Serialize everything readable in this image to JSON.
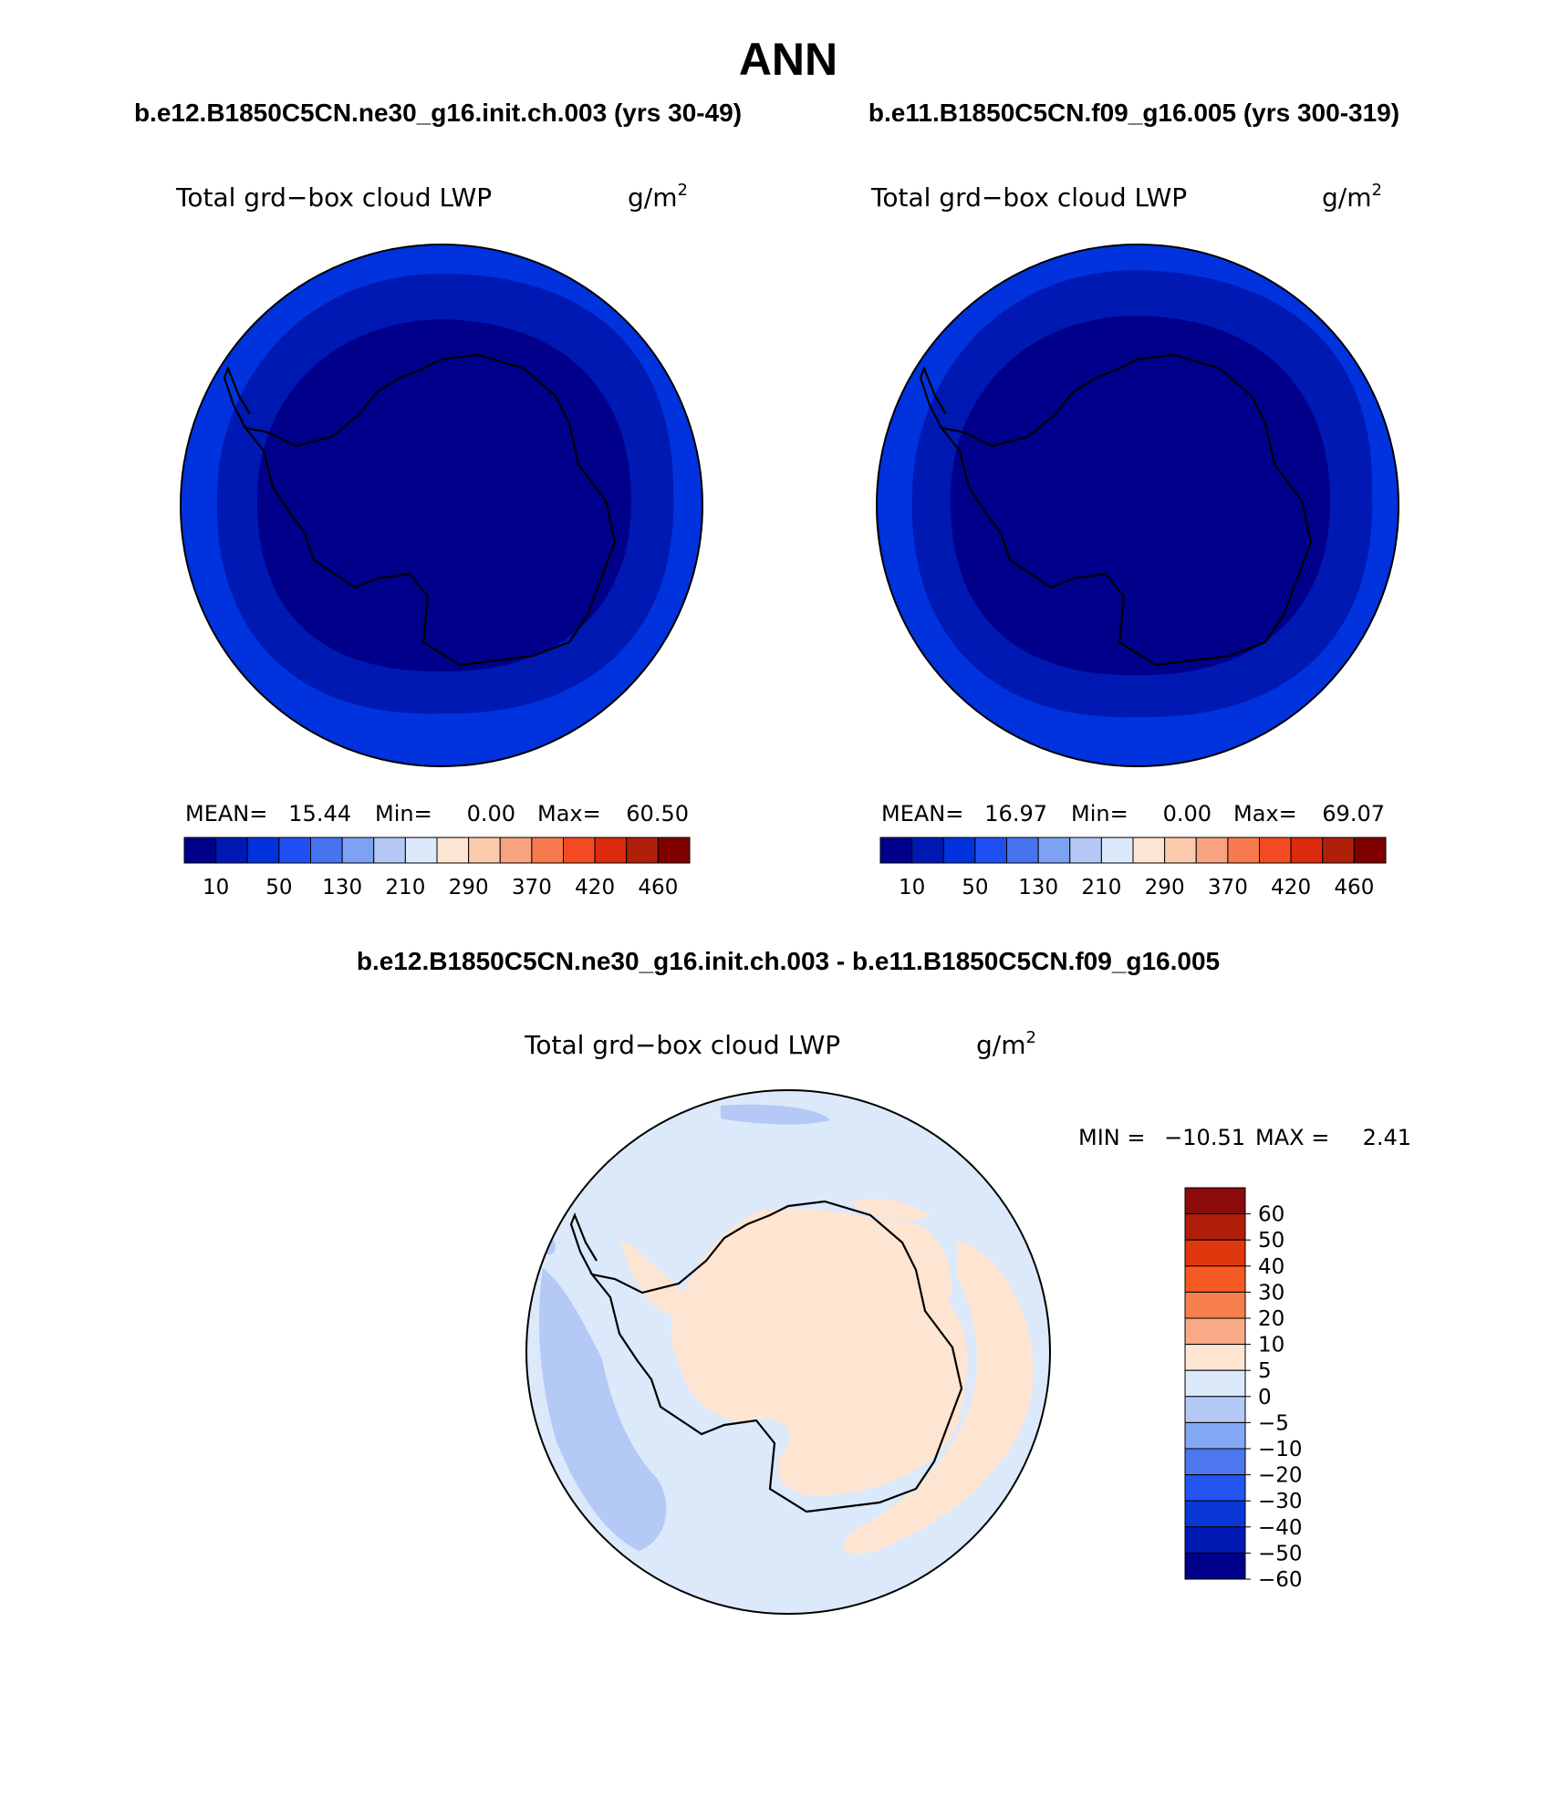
{
  "title": "ANN",
  "variable": {
    "label": "Total grd−box cloud LWP",
    "units": "g/m",
    "units_power": "2"
  },
  "panels": [
    {
      "id": "left",
      "case": "b.e12.B1850C5CN.ne30_g16.init.ch.003 (yrs 30-49)",
      "stats": {
        "mean_label": "MEAN=",
        "mean": "15.44",
        "min_label": "Min=",
        "min": "0.00",
        "max_label": "Max=",
        "max": "60.50"
      }
    },
    {
      "id": "right",
      "case": "b.e11.B1850C5CN.f09_g16.005 (yrs 300-319)",
      "stats": {
        "mean_label": "MEAN=",
        "mean": "16.97",
        "min_label": "Min=",
        "min": "0.00",
        "max_label": "Max=",
        "max": "69.07"
      }
    }
  ],
  "abs_colorbar": {
    "colors": [
      "#00008b",
      "#0019b3",
      "#0033dd",
      "#1f4ff2",
      "#4773f0",
      "#7da2f3",
      "#b4c9f6",
      "#dbe9fb",
      "#fde5d2",
      "#fbc9ac",
      "#f8a27f",
      "#f67a4d",
      "#f24b24",
      "#dc2a0c",
      "#b01f09",
      "#800000"
    ],
    "labels": [
      "10",
      "50",
      "130",
      "210",
      "290",
      "370",
      "420",
      "460"
    ]
  },
  "diff": {
    "title": "b.e12.B1850C5CN.ne30_g16.init.ch.003 - b.e11.B1850C5CN.f09_g16.005",
    "min_label": "MIN =",
    "min": "−10.51",
    "max_label": "MAX =",
    "max": "2.41",
    "colorbar_colors_top_to_bottom": [
      "#8b0a0a",
      "#b01e0a",
      "#e0360d",
      "#f55a22",
      "#f77f4e",
      "#f9a985",
      "#fde5d2",
      "#dbe9fb",
      "#b4c9f6",
      "#82a8f3",
      "#4d78f0",
      "#2255f2",
      "#0a38d6",
      "#0019b3",
      "#00008b"
    ],
    "colorbar_labels_top_to_bottom": [
      "60",
      "50",
      "40",
      "30",
      "20",
      "10",
      "5",
      "0",
      "−5",
      "−10",
      "−20",
      "−30",
      "−40",
      "−50",
      "−60"
    ]
  },
  "map_colors": {
    "deep": "#00008b",
    "mid": "#0019b3",
    "outer": "#0033dd",
    "diff_bg": "#dbe9fb",
    "diff_neg": "#b4c9f6",
    "diff_pos": "#fde5d2"
  }
}
